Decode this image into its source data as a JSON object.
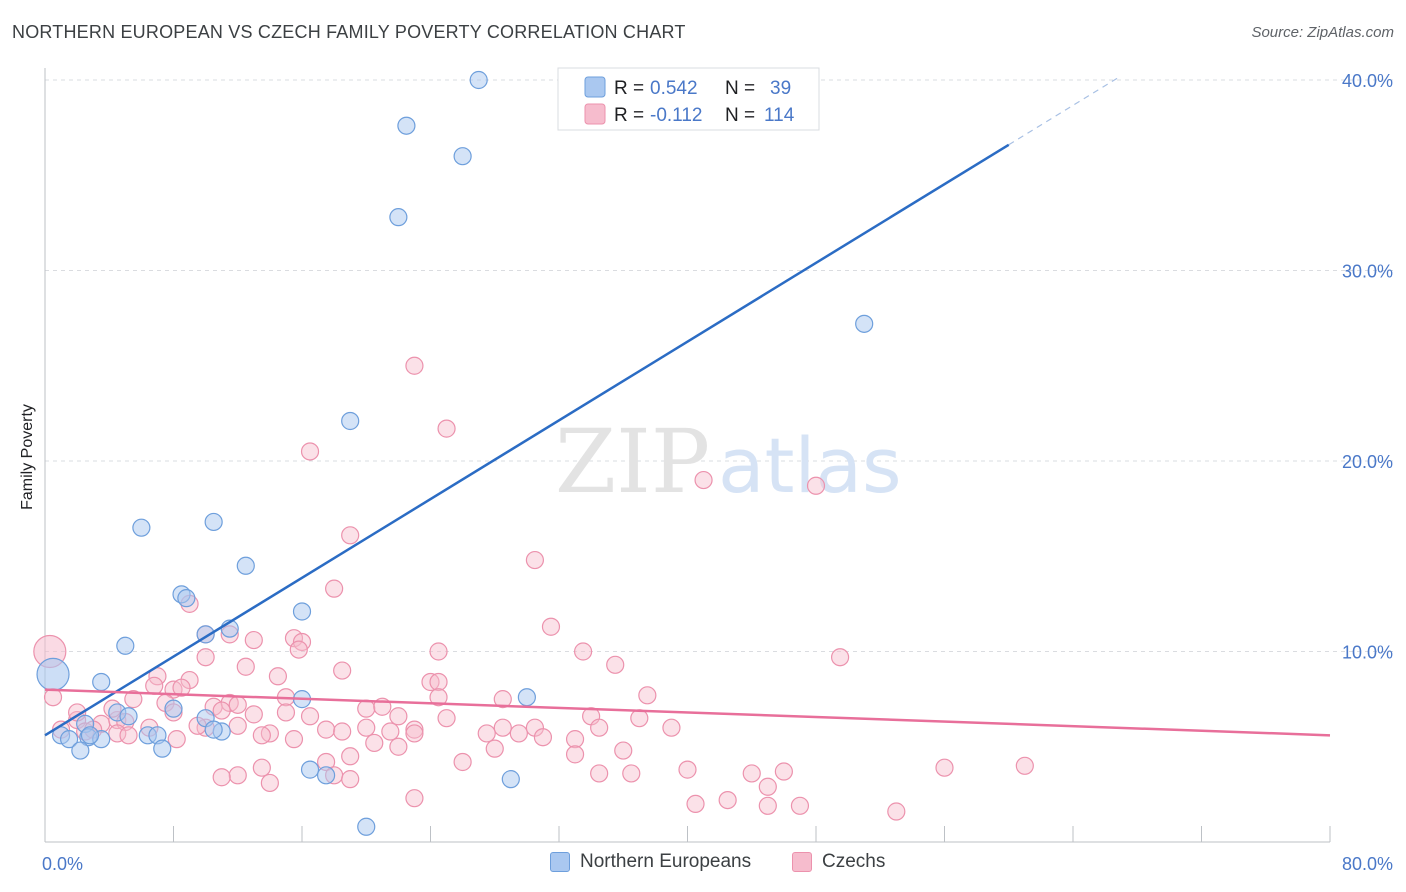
{
  "title": "NORTHERN EUROPEAN VS CZECH FAMILY POVERTY CORRELATION CHART",
  "source": "Source: ZipAtlas.com",
  "watermark": {
    "zip": "ZIP",
    "atlas": "atlas"
  },
  "colors": {
    "blue_fill": "#aac8f0",
    "blue_stroke": "#6e9fdc",
    "blue_line": "#2b6cc4",
    "pink_fill": "#f6bccd",
    "pink_stroke": "#ec92ad",
    "pink_line": "#e86f9a",
    "grid": "#dadce0",
    "tick_text": "#4a78c8"
  },
  "legend": {
    "rows": [
      {
        "r_label": "R =",
        "r_value": "0.542",
        "n_label": "N =",
        "n_value": "39"
      },
      {
        "r_label": "R =",
        "r_value": "-0.112",
        "n_label": "N =",
        "n_value": "114"
      }
    ]
  },
  "chart_data": {
    "type": "scatter",
    "title": "NORTHERN EUROPEAN VS CZECH FAMILY POVERTY CORRELATION CHART",
    "xlabel": "",
    "ylabel": "Family Poverty",
    "xlim": [
      0,
      80
    ],
    "ylim": [
      0,
      40
    ],
    "x_tick_labels": [
      "0.0%",
      "80.0%"
    ],
    "y_ticks": [
      10,
      20,
      30,
      40
    ],
    "y_tick_labels": [
      "10.0%",
      "20.0%",
      "30.0%",
      "40.0%"
    ],
    "series": [
      {
        "name": "Northern Europeans",
        "r": 0.542,
        "n": 39,
        "trend": {
          "x0": 0,
          "y0": 5.6,
          "x1": 60,
          "y1": 36.6,
          "dash_to_x": 67
        },
        "points": [
          [
            27,
            40.0
          ],
          [
            22.5,
            37.6
          ],
          [
            26,
            36.0
          ],
          [
            22,
            32.8
          ],
          [
            51,
            27.2
          ],
          [
            19,
            22.1
          ],
          [
            6,
            16.5
          ],
          [
            10.5,
            16.8
          ],
          [
            12.5,
            14.5
          ],
          [
            8.5,
            13.0
          ],
          [
            8.8,
            12.8
          ],
          [
            16,
            12.1
          ],
          [
            10,
            10.9
          ],
          [
            11.5,
            11.2
          ],
          [
            5,
            10.3
          ],
          [
            0.5,
            8.8
          ],
          [
            3.5,
            8.4
          ],
          [
            16,
            7.5
          ],
          [
            30,
            7.6
          ],
          [
            4.5,
            6.8
          ],
          [
            5.2,
            6.6
          ],
          [
            10,
            6.5
          ],
          [
            8,
            7.0
          ],
          [
            2.5,
            6.2
          ],
          [
            6.4,
            5.6
          ],
          [
            7,
            5.6
          ],
          [
            11,
            5.8
          ],
          [
            10.5,
            5.9
          ],
          [
            1,
            5.6
          ],
          [
            1.5,
            5.4
          ],
          [
            2.7,
            5.5
          ],
          [
            3.5,
            5.4
          ],
          [
            2.2,
            4.8
          ],
          [
            7.3,
            4.9
          ],
          [
            16.5,
            3.8
          ],
          [
            17.5,
            3.5
          ],
          [
            29,
            3.3
          ],
          [
            20,
            0.8
          ],
          [
            2.8,
            5.6
          ]
        ]
      },
      {
        "name": "Czechs",
        "r": -0.112,
        "n": 114,
        "trend": {
          "x0": 0,
          "y0": 8.0,
          "x1": 80,
          "y1": 5.6
        },
        "points": [
          [
            0.3,
            10.0
          ],
          [
            0.5,
            7.6
          ],
          [
            23,
            25.0
          ],
          [
            25,
            21.7
          ],
          [
            16.5,
            20.5
          ],
          [
            41,
            19.0
          ],
          [
            48,
            18.7
          ],
          [
            19,
            16.1
          ],
          [
            30.5,
            14.8
          ],
          [
            18,
            13.3
          ],
          [
            9,
            12.5
          ],
          [
            31.5,
            11.3
          ],
          [
            10,
            10.9
          ],
          [
            11.5,
            10.9
          ],
          [
            13,
            10.6
          ],
          [
            15.5,
            10.7
          ],
          [
            16,
            10.5
          ],
          [
            15.8,
            10.1
          ],
          [
            24.5,
            10.0
          ],
          [
            33.5,
            10.0
          ],
          [
            10,
            9.7
          ],
          [
            12.5,
            9.2
          ],
          [
            18.5,
            9.0
          ],
          [
            35.5,
            9.3
          ],
          [
            49.5,
            9.7
          ],
          [
            7,
            8.7
          ],
          [
            9,
            8.5
          ],
          [
            14.5,
            8.7
          ],
          [
            24,
            8.4
          ],
          [
            24.5,
            8.4
          ],
          [
            6.8,
            8.2
          ],
          [
            8,
            8.0
          ],
          [
            5.5,
            7.5
          ],
          [
            8.5,
            8.1
          ],
          [
            15,
            7.6
          ],
          [
            24.5,
            7.6
          ],
          [
            37.5,
            7.7
          ],
          [
            28.5,
            7.5
          ],
          [
            7.5,
            7.3
          ],
          [
            10.5,
            7.1
          ],
          [
            11.5,
            7.3
          ],
          [
            12,
            7.2
          ],
          [
            20,
            7.0
          ],
          [
            21,
            7.1
          ],
          [
            8,
            6.8
          ],
          [
            11,
            6.9
          ],
          [
            13,
            6.7
          ],
          [
            15,
            6.8
          ],
          [
            16.5,
            6.6
          ],
          [
            22,
            6.6
          ],
          [
            25,
            6.5
          ],
          [
            34,
            6.6
          ],
          [
            37,
            6.5
          ],
          [
            2,
            6.4
          ],
          [
            3.5,
            6.2
          ],
          [
            4.5,
            6.4
          ],
          [
            5,
            6.3
          ],
          [
            6.5,
            6.0
          ],
          [
            10,
            6.0
          ],
          [
            12,
            6.1
          ],
          [
            17.5,
            5.9
          ],
          [
            18.5,
            5.8
          ],
          [
            20,
            6.0
          ],
          [
            21.5,
            5.8
          ],
          [
            23,
            5.9
          ],
          [
            28.5,
            6.0
          ],
          [
            30.5,
            6.0
          ],
          [
            34.5,
            6.0
          ],
          [
            39,
            6.0
          ],
          [
            1,
            5.9
          ],
          [
            2.5,
            5.8
          ],
          [
            3,
            5.9
          ],
          [
            4.5,
            5.7
          ],
          [
            5.2,
            5.6
          ],
          [
            8.2,
            5.4
          ],
          [
            14,
            5.7
          ],
          [
            15.5,
            5.4
          ],
          [
            20.5,
            5.2
          ],
          [
            23,
            5.7
          ],
          [
            27.5,
            5.7
          ],
          [
            29.5,
            5.7
          ],
          [
            31,
            5.5
          ],
          [
            33,
            5.4
          ],
          [
            22,
            5.0
          ],
          [
            28,
            4.9
          ],
          [
            33,
            4.6
          ],
          [
            19,
            4.5
          ],
          [
            17.5,
            4.2
          ],
          [
            26,
            4.2
          ],
          [
            12,
            3.5
          ],
          [
            13.5,
            3.9
          ],
          [
            18,
            3.5
          ],
          [
            34.5,
            3.6
          ],
          [
            36.5,
            3.6
          ],
          [
            40,
            3.8
          ],
          [
            44,
            3.6
          ],
          [
            46,
            3.7
          ],
          [
            56,
            3.9
          ],
          [
            61,
            4.0
          ],
          [
            19,
            3.3
          ],
          [
            14,
            3.1
          ],
          [
            45,
            2.9
          ],
          [
            23,
            2.3
          ],
          [
            40.5,
            2.0
          ],
          [
            42.5,
            2.2
          ],
          [
            45,
            1.9
          ],
          [
            47,
            1.9
          ],
          [
            53,
            1.6
          ],
          [
            11,
            3.4
          ],
          [
            2,
            6.8
          ],
          [
            9.5,
            6.1
          ],
          [
            13.5,
            5.6
          ],
          [
            4.2,
            7.0
          ],
          [
            36,
            4.8
          ]
        ]
      }
    ]
  },
  "bottom_legend": [
    {
      "label": "Northern Europeans"
    },
    {
      "label": "Czechs"
    }
  ]
}
